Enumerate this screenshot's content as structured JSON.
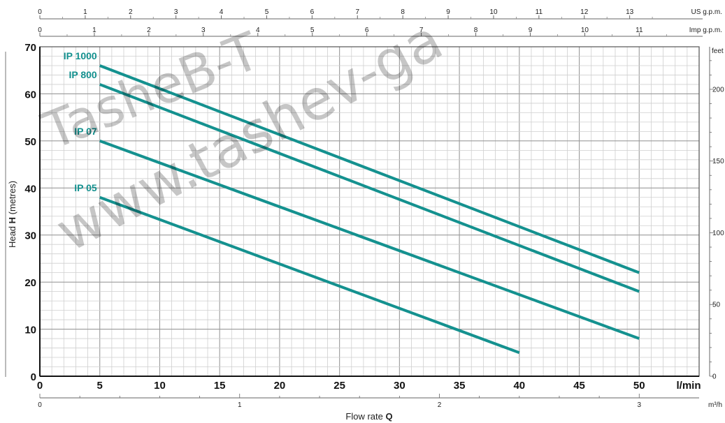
{
  "chart_data": {
    "type": "line",
    "title": "",
    "xlabel": "Flow rate",
    "xlabel_bold": "Q",
    "ylabel": "Head",
    "ylabel_bold": "H",
    "ylabel_unit": "(metres)",
    "xlim": [
      0,
      55
    ],
    "ylim": [
      0,
      70
    ],
    "x_unit": "l/min",
    "x_ticks": [
      0,
      5,
      10,
      15,
      20,
      25,
      30,
      35,
      40,
      45,
      50
    ],
    "y_ticks": [
      0,
      10,
      20,
      30,
      40,
      50,
      60,
      70
    ],
    "grid": true,
    "line_color": "#14918f",
    "series": [
      {
        "name": "IP 1000",
        "x": [
          5,
          50
        ],
        "y": [
          66,
          22
        ]
      },
      {
        "name": "IP 800",
        "x": [
          5,
          50
        ],
        "y": [
          62,
          18
        ]
      },
      {
        "name": "IP 07",
        "x": [
          5,
          50
        ],
        "y": [
          50,
          8
        ]
      },
      {
        "name": "IP 05",
        "x": [
          5,
          40
        ],
        "y": [
          38,
          5
        ]
      }
    ],
    "top_axes": [
      {
        "unit": "US g.p.m.",
        "ticks": [
          0,
          1,
          2,
          3,
          4,
          5,
          6,
          7,
          8,
          9,
          10,
          11,
          12,
          13
        ]
      },
      {
        "unit": "Imp g.p.m.",
        "ticks": [
          0,
          1,
          2,
          3,
          4,
          5,
          6,
          7,
          8,
          9,
          10,
          11
        ]
      }
    ],
    "right_axis": {
      "unit": "feet",
      "ticks": [
        0,
        50,
        100,
        150,
        200
      ]
    },
    "bottom_axis2": {
      "unit": "m³/h",
      "ticks": [
        0,
        1,
        2,
        3
      ]
    }
  },
  "watermark": [
    "TasheB-T",
    "www.tashev-ga"
  ]
}
